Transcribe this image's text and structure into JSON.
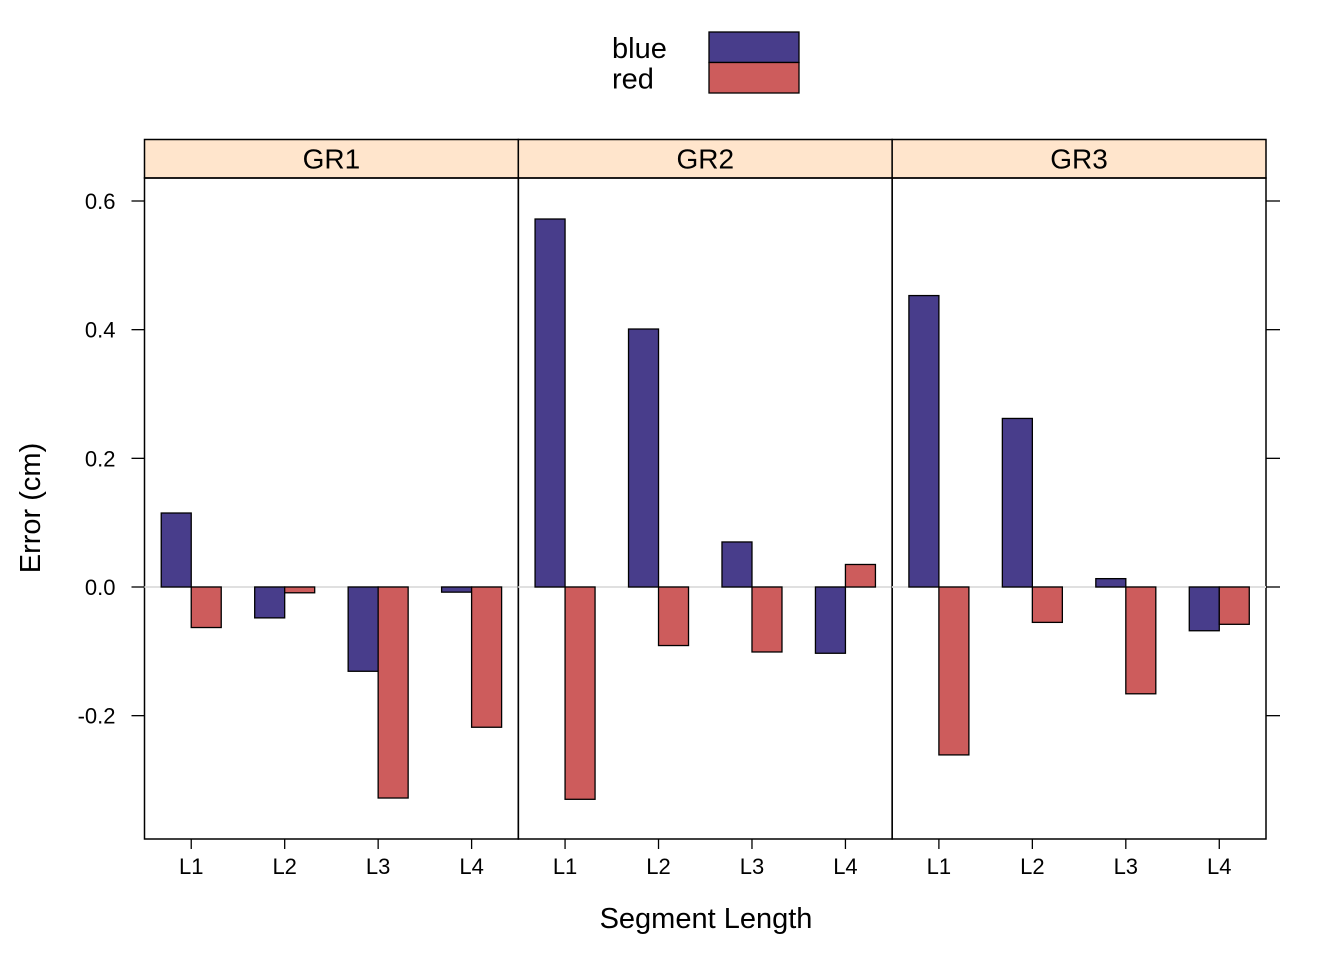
{
  "chart_data": {
    "type": "bar",
    "xlabel": "Segment Length",
    "ylabel": "Error (cm)",
    "ylim": [
      -0.39,
      0.69
    ],
    "yticks": [
      -0.2,
      0.0,
      0.2,
      0.4,
      0.6
    ],
    "ytick_labels": [
      "-0.2",
      "0.0",
      "0.2",
      "0.4",
      "0.6"
    ],
    "categories": [
      "L1",
      "L2",
      "L3",
      "L4"
    ],
    "legend": {
      "placement": "top",
      "entries": [
        {
          "name": "blue",
          "color": "#483d8b"
        },
        {
          "name": "red",
          "color": "#cd5c5c"
        }
      ]
    },
    "strip_color": "#ffe5cc",
    "panels": [
      {
        "name": "GR1",
        "series": [
          {
            "name": "blue",
            "values": [
              0.115,
              -0.048,
              -0.131,
              -0.008
            ]
          },
          {
            "name": "red",
            "values": [
              -0.063,
              -0.009,
              -0.328,
              -0.218
            ]
          }
        ]
      },
      {
        "name": "GR2",
        "series": [
          {
            "name": "blue",
            "values": [
              0.572,
              0.401,
              0.07,
              -0.103
            ]
          },
          {
            "name": "red",
            "values": [
              -0.33,
              -0.091,
              -0.101,
              0.035
            ]
          }
        ]
      },
      {
        "name": "GR3",
        "series": [
          {
            "name": "blue",
            "values": [
              0.453,
              0.262,
              0.013,
              -0.068
            ]
          },
          {
            "name": "red",
            "values": [
              -0.261,
              -0.055,
              -0.166,
              -0.058
            ]
          }
        ]
      }
    ]
  }
}
